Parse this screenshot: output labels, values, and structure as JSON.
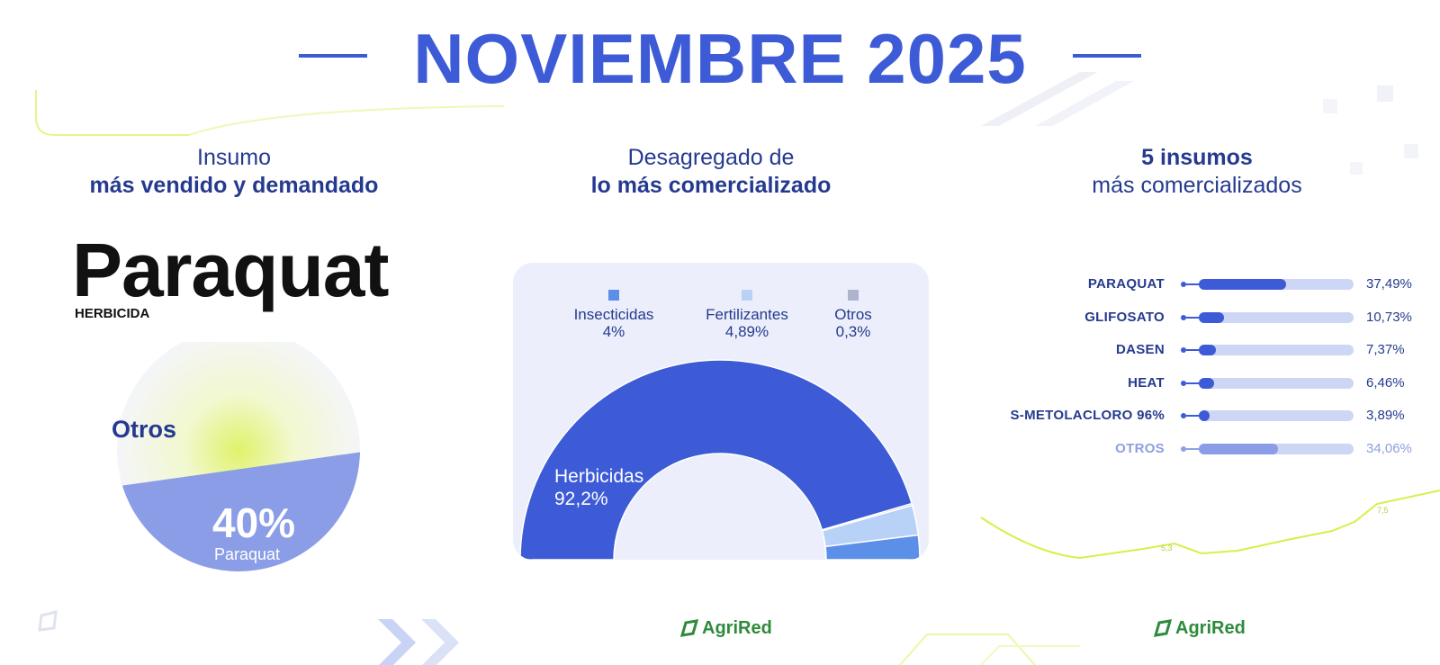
{
  "header": {
    "title": "NOVIEMBRE 2025"
  },
  "left_panel": {
    "heading_line1": "Insumo",
    "heading_line2": "más vendido y demandado",
    "product_name": "Paraquat",
    "product_type": "HERBICIDA",
    "donut": {
      "other_label": "Otros",
      "main_value": "40%",
      "main_label": "Paraquat",
      "share": 0.4
    }
  },
  "middle_panel": {
    "heading_line1": "Desagregado de",
    "heading_line2": "lo más comercializado",
    "legend": [
      {
        "name": "Insecticidas",
        "value": "4%",
        "color": "#5b8fe8"
      },
      {
        "name": "Fertilizantes",
        "value": "4,89%",
        "color": "#b8d1f7"
      },
      {
        "name": "Otros",
        "value": "0,3%",
        "color": "#aeb4cc"
      }
    ],
    "herbicidas_label": "Herbicidas",
    "herbicidas_value": "92,2%"
  },
  "right_panel": {
    "heading_line1": "5 insumos",
    "heading_line2": "más comercializados",
    "trend_labels": [
      "5,3",
      "7,5"
    ]
  },
  "footer": {
    "logo_text": "AgriRed"
  },
  "colors": {
    "primary": "#3d5bd6",
    "navy": "#253a8f",
    "track": "#cdd6f4",
    "lime": "#d6f04a",
    "panel_bg": "#eceffb"
  },
  "chart_data": [
    {
      "type": "pie",
      "categories": [
        "Paraquat",
        "Otros"
      ],
      "values": [
        40,
        60
      ]
    },
    {
      "type": "pie",
      "categories": [
        "Herbicidas",
        "Insecticidas",
        "Fertilizantes",
        "Otros"
      ],
      "values": [
        92.2,
        4,
        4.89,
        0.3
      ],
      "value_labels": [
        "92,2%",
        "4%",
        "4,89%",
        "0,3%"
      ],
      "legend": "top"
    },
    {
      "type": "bar",
      "categories": [
        "PARAQUAT",
        "GLIFOSATO",
        "DASEN",
        "HEAT",
        "S-METOLACLORO 96%",
        "OTROS"
      ],
      "values": [
        37.49,
        10.73,
        7.37,
        6.46,
        3.89,
        34.06
      ],
      "value_labels": [
        "37,49%",
        "10,73%",
        "7,37%",
        "6,46%",
        "3,89%",
        "34,06%"
      ],
      "xlim": [
        0,
        100
      ]
    }
  ]
}
